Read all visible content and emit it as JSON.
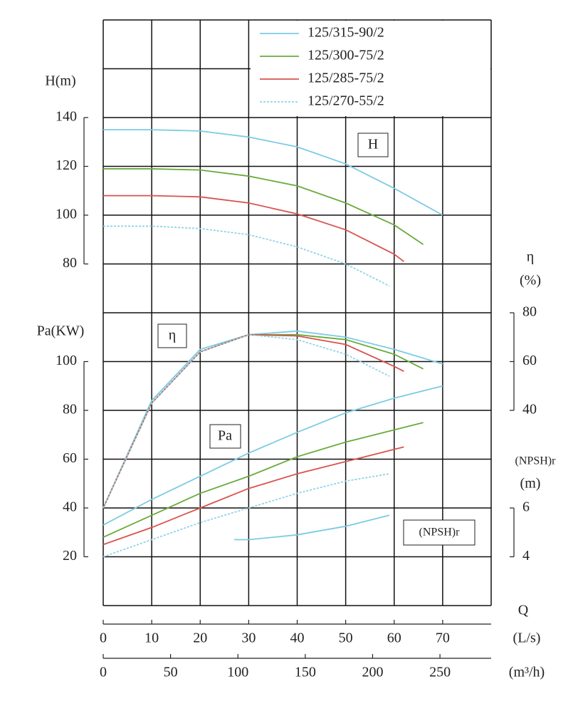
{
  "chart_data": {
    "type": "line",
    "x_label": "Q",
    "x_unit": "(L/s)",
    "x2_unit": "(m³/h)",
    "xlim": [
      0,
      80
    ],
    "xticks": [
      0,
      10,
      20,
      30,
      40,
      50,
      60,
      70
    ],
    "x2lim": [
      0,
      288
    ],
    "x2ticks": [
      0,
      50,
      100,
      150,
      200,
      250
    ],
    "h_label": "H(m)",
    "hlim": [
      80,
      140
    ],
    "hticks": [
      80,
      100,
      120,
      140
    ],
    "pa_label": "Pa(KW)",
    "palim": [
      20,
      100
    ],
    "paticks": [
      20,
      40,
      60,
      80,
      100
    ],
    "eta_label": "η",
    "eta_unit": "(%)",
    "etalim": [
      40,
      80
    ],
    "etaticks": [
      40,
      60,
      80
    ],
    "npsh_label": "(NPSH)r",
    "npsh_unit": "(m)",
    "npshlim": [
      4,
      6
    ],
    "npshticks": [
      4,
      6
    ],
    "annotations": [
      "H",
      "η",
      "Pa",
      "(NPSH)r"
    ],
    "grid": true,
    "series": [
      {
        "name": "125/315-90/2",
        "color": "#7ccbe2",
        "style": "solid",
        "x": [
          0,
          10,
          20,
          30,
          40,
          50,
          60,
          70
        ],
        "H": [
          135,
          135,
          134.5,
          132,
          128,
          121,
          111,
          100
        ],
        "eta": [
          0,
          44,
          65,
          71,
          72.5,
          70,
          65,
          59
        ],
        "Pa": [
          33,
          43.5,
          53,
          62.5,
          71,
          79,
          85,
          90
        ]
      },
      {
        "name": "125/300-75/2",
        "color": "#6aab3c",
        "style": "solid",
        "x": [
          0,
          10,
          20,
          30,
          40,
          50,
          60,
          66
        ],
        "H": [
          119,
          119,
          118.5,
          116,
          112,
          105,
          96,
          88
        ],
        "eta": [
          0,
          43,
          64,
          71,
          71,
          69,
          63,
          57
        ],
        "Pa": [
          28,
          37,
          46,
          53,
          61,
          67,
          72,
          75
        ]
      },
      {
        "name": "125/285-75/2",
        "color": "#d9534f",
        "style": "solid",
        "x": [
          0,
          10,
          20,
          30,
          40,
          50,
          60,
          62
        ],
        "H": [
          108,
          108,
          107.5,
          105,
          100.5,
          94,
          84,
          81
        ],
        "eta": [
          0,
          43,
          64,
          71,
          70.5,
          67,
          58,
          56
        ],
        "Pa": [
          25,
          32,
          40,
          48,
          54,
          59,
          64,
          65
        ]
      },
      {
        "name": "125/270-55/2",
        "color": "#8fd3e8",
        "style": "dashed",
        "x": [
          0,
          10,
          20,
          30,
          40,
          50,
          59
        ],
        "H": [
          95.5,
          95.5,
          94.5,
          92,
          87,
          80,
          71
        ],
        "eta": [
          0,
          43,
          64,
          71,
          69,
          63,
          54
        ],
        "Pa": [
          20,
          27,
          34,
          40,
          46,
          51,
          54
        ]
      }
    ],
    "npsh_curve": {
      "color": "#7ccbe2",
      "x": [
        27,
        30,
        40,
        50,
        59
      ],
      "values": [
        4.7,
        4.7,
        4.9,
        5.25,
        5.7
      ]
    }
  }
}
